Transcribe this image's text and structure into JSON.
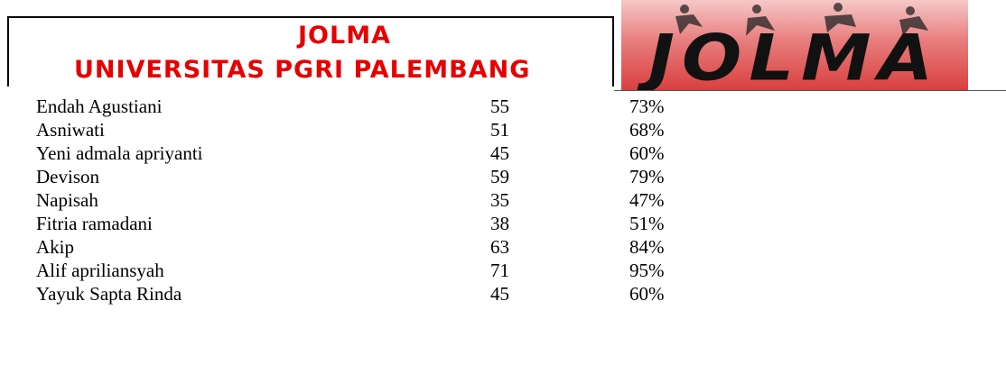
{
  "header": {
    "title": "JOLMA",
    "subtitle": "UNIVERSITAS PGRI PALEMBANG",
    "logo_text": "JOLMA"
  },
  "table": {
    "rows": [
      [
        "Endah Agustiani",
        55,
        "73%"
      ],
      [
        "Asniwati",
        51,
        "68%"
      ],
      [
        "Yeni admala apriyanti",
        45,
        "60%"
      ],
      [
        "Devison",
        59,
        "79%"
      ],
      [
        "Napisah",
        35,
        "47%"
      ],
      [
        "Fitria ramadani",
        38,
        "51%"
      ],
      [
        "Akip",
        63,
        "84%"
      ],
      [
        "Alif apriliansyah",
        71,
        "95%"
      ],
      [
        "Yayuk Sapta Rinda",
        45,
        "60%"
      ]
    ]
  }
}
